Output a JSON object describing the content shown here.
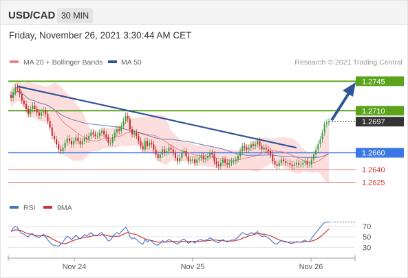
{
  "header": {
    "symbol": "USD/CAD",
    "timeframe": "30 MIN"
  },
  "datetime": "Friday, November 26, 2021 3:30:44 AM CET",
  "legend": {
    "ma20": {
      "label": "MA 20 + Bollinger Bands",
      "color": "#f08080"
    },
    "ma50": {
      "label": "MA 50",
      "color": "#2f5597"
    },
    "watermark": "Research © 2021 Trading Central"
  },
  "rsi_legend": {
    "rsi": {
      "label": "RSI",
      "color": "#4472c4"
    },
    "ma9": {
      "label": "9MA",
      "color": "#d32f2f"
    }
  },
  "colors": {
    "resistance": "#5ba31b",
    "support": "#3b78e7",
    "low": "#e57373",
    "projection": "#2f5597",
    "bands": "#fcd6d6"
  },
  "chart_data": [
    {
      "type": "candlestick",
      "x_ticks": [
        "Nov 24",
        "Nov 25",
        "Nov 26"
      ],
      "ylim": [
        1.2605,
        1.276
      ],
      "levels": [
        {
          "value": 1.2745,
          "label": "1.2745",
          "kind": "resistance"
        },
        {
          "value": 1.271,
          "label": "1.2710",
          "kind": "resistance"
        },
        {
          "value": 1.2697,
          "label": "1.2697",
          "kind": "last_price"
        },
        {
          "value": 1.266,
          "label": "1.2660",
          "kind": "support"
        },
        {
          "value": 1.264,
          "label": "1.2640",
          "kind": "support"
        },
        {
          "value": 1.2625,
          "label": "1.2625",
          "kind": "support"
        }
      ],
      "close": [
        1.2725,
        1.2732,
        1.2738,
        1.2736,
        1.273,
        1.2722,
        1.2718,
        1.2712,
        1.2706,
        1.2712,
        1.2716,
        1.2712,
        1.2708,
        1.2704,
        1.2708,
        1.271,
        1.2706,
        1.2698,
        1.269,
        1.268,
        1.2676,
        1.267,
        1.2664,
        1.2662,
        1.2666,
        1.2672,
        1.2677,
        1.2674,
        1.267,
        1.2674,
        1.2678,
        1.2674,
        1.267,
        1.2674,
        1.2678,
        1.2676,
        1.268,
        1.2684,
        1.2682,
        1.268,
        1.268,
        1.2684,
        1.2686,
        1.2682,
        1.2678,
        1.2672,
        1.2672,
        1.2678,
        1.2684,
        1.2688,
        1.2686,
        1.2692,
        1.2698,
        1.2704,
        1.27,
        1.2688,
        1.2682,
        1.2684,
        1.268,
        1.2674,
        1.2668,
        1.2664,
        1.2674,
        1.2668,
        1.2672,
        1.267,
        1.2664,
        1.2658,
        1.2654,
        1.2658,
        1.2664,
        1.266,
        1.2662,
        1.2666,
        1.2664,
        1.266,
        1.2654,
        1.265,
        1.2654,
        1.266,
        1.2662,
        1.2656,
        1.265,
        1.2652,
        1.2652,
        1.2648,
        1.2652,
        1.2654,
        1.2656,
        1.2652,
        1.2654,
        1.2656,
        1.266,
        1.2658,
        1.265,
        1.2646,
        1.2644,
        1.2648,
        1.2652,
        1.2648,
        1.2646,
        1.2648,
        1.265,
        1.265,
        1.2652,
        1.2656,
        1.2662,
        1.2668,
        1.2666,
        1.2664,
        1.2666,
        1.267,
        1.2668,
        1.267,
        1.2674,
        1.2668,
        1.2664,
        1.2666,
        1.2664,
        1.2662,
        1.2658,
        1.265,
        1.2646,
        1.2644,
        1.2648,
        1.2652,
        1.265,
        1.2648,
        1.2648,
        1.2646,
        1.2644,
        1.2646,
        1.2648,
        1.2646,
        1.2646,
        1.2648,
        1.265,
        1.2646,
        1.2646,
        1.2652,
        1.2658,
        1.2664,
        1.267,
        1.2676,
        1.2684,
        1.2694,
        1.2696,
        1.2697
      ],
      "trendline": {
        "from_index": 3,
        "from_value": 1.2739,
        "to_index": 132,
        "to_value": 1.2666
      },
      "projection": {
        "from_value": 1.2697,
        "to_value": 1.2743
      }
    },
    {
      "type": "line",
      "title": "RSI",
      "yticks": [
        70,
        50,
        30
      ],
      "ylim": [
        15,
        85
      ],
      "rsi": [
        60,
        66,
        70,
        67,
        61,
        56,
        55,
        52,
        50,
        55,
        56,
        52,
        50,
        48,
        52,
        55,
        50,
        44,
        40,
        35,
        34,
        33,
        32,
        36,
        40,
        46,
        51,
        48,
        45,
        49,
        53,
        49,
        46,
        50,
        54,
        51,
        55,
        58,
        54,
        52,
        52,
        56,
        58,
        52,
        48,
        42,
        44,
        50,
        55,
        58,
        55,
        60,
        64,
        68,
        62,
        50,
        46,
        48,
        45,
        41,
        38,
        36,
        45,
        40,
        44,
        42,
        38,
        35,
        34,
        38,
        43,
        40,
        42,
        45,
        43,
        40,
        38,
        36,
        40,
        44,
        46,
        42,
        38,
        40,
        41,
        38,
        42,
        44,
        45,
        42,
        44,
        45,
        48,
        46,
        42,
        40,
        39,
        42,
        45,
        42,
        40,
        42,
        44,
        44,
        46,
        49,
        54,
        58,
        56,
        54,
        55,
        58,
        56,
        57,
        60,
        54,
        50,
        52,
        50,
        48,
        45,
        40,
        37,
        36,
        40,
        43,
        41,
        40,
        40,
        38,
        37,
        39,
        41,
        40,
        40,
        42,
        44,
        41,
        41,
        47,
        53,
        58,
        63,
        68,
        73,
        77,
        78,
        78
      ],
      "ma9": [
        60,
        62,
        63,
        63,
        62,
        61,
        59,
        57,
        56,
        55,
        54,
        53,
        52,
        52,
        52,
        52,
        52,
        51,
        49,
        46,
        44,
        42,
        40,
        38,
        37,
        37,
        38,
        40,
        42,
        43,
        45,
        46,
        47,
        48,
        49,
        49,
        50,
        51,
        52,
        53,
        53,
        53,
        54,
        54,
        53,
        52,
        51,
        51,
        51,
        51,
        51,
        53,
        55,
        57,
        58,
        57,
        56,
        55,
        54,
        52,
        50,
        48,
        46,
        45,
        44,
        43,
        42,
        41,
        40,
        40,
        40,
        40,
        40,
        41,
        41,
        41,
        41,
        41,
        40,
        41,
        41,
        41,
        41,
        41,
        41,
        41,
        41,
        41,
        42,
        42,
        42,
        43,
        43,
        44,
        44,
        44,
        43,
        43,
        43,
        42,
        42,
        42,
        42,
        42,
        43,
        44,
        45,
        47,
        49,
        50,
        52,
        53,
        54,
        55,
        56,
        56,
        55,
        55,
        54,
        53,
        52,
        50,
        48,
        46,
        44,
        43,
        42,
        41,
        40,
        40,
        40,
        40,
        40,
        40,
        40,
        40,
        41,
        41,
        41,
        42,
        43,
        45,
        47,
        50,
        53,
        57,
        61,
        65
      ]
    }
  ]
}
